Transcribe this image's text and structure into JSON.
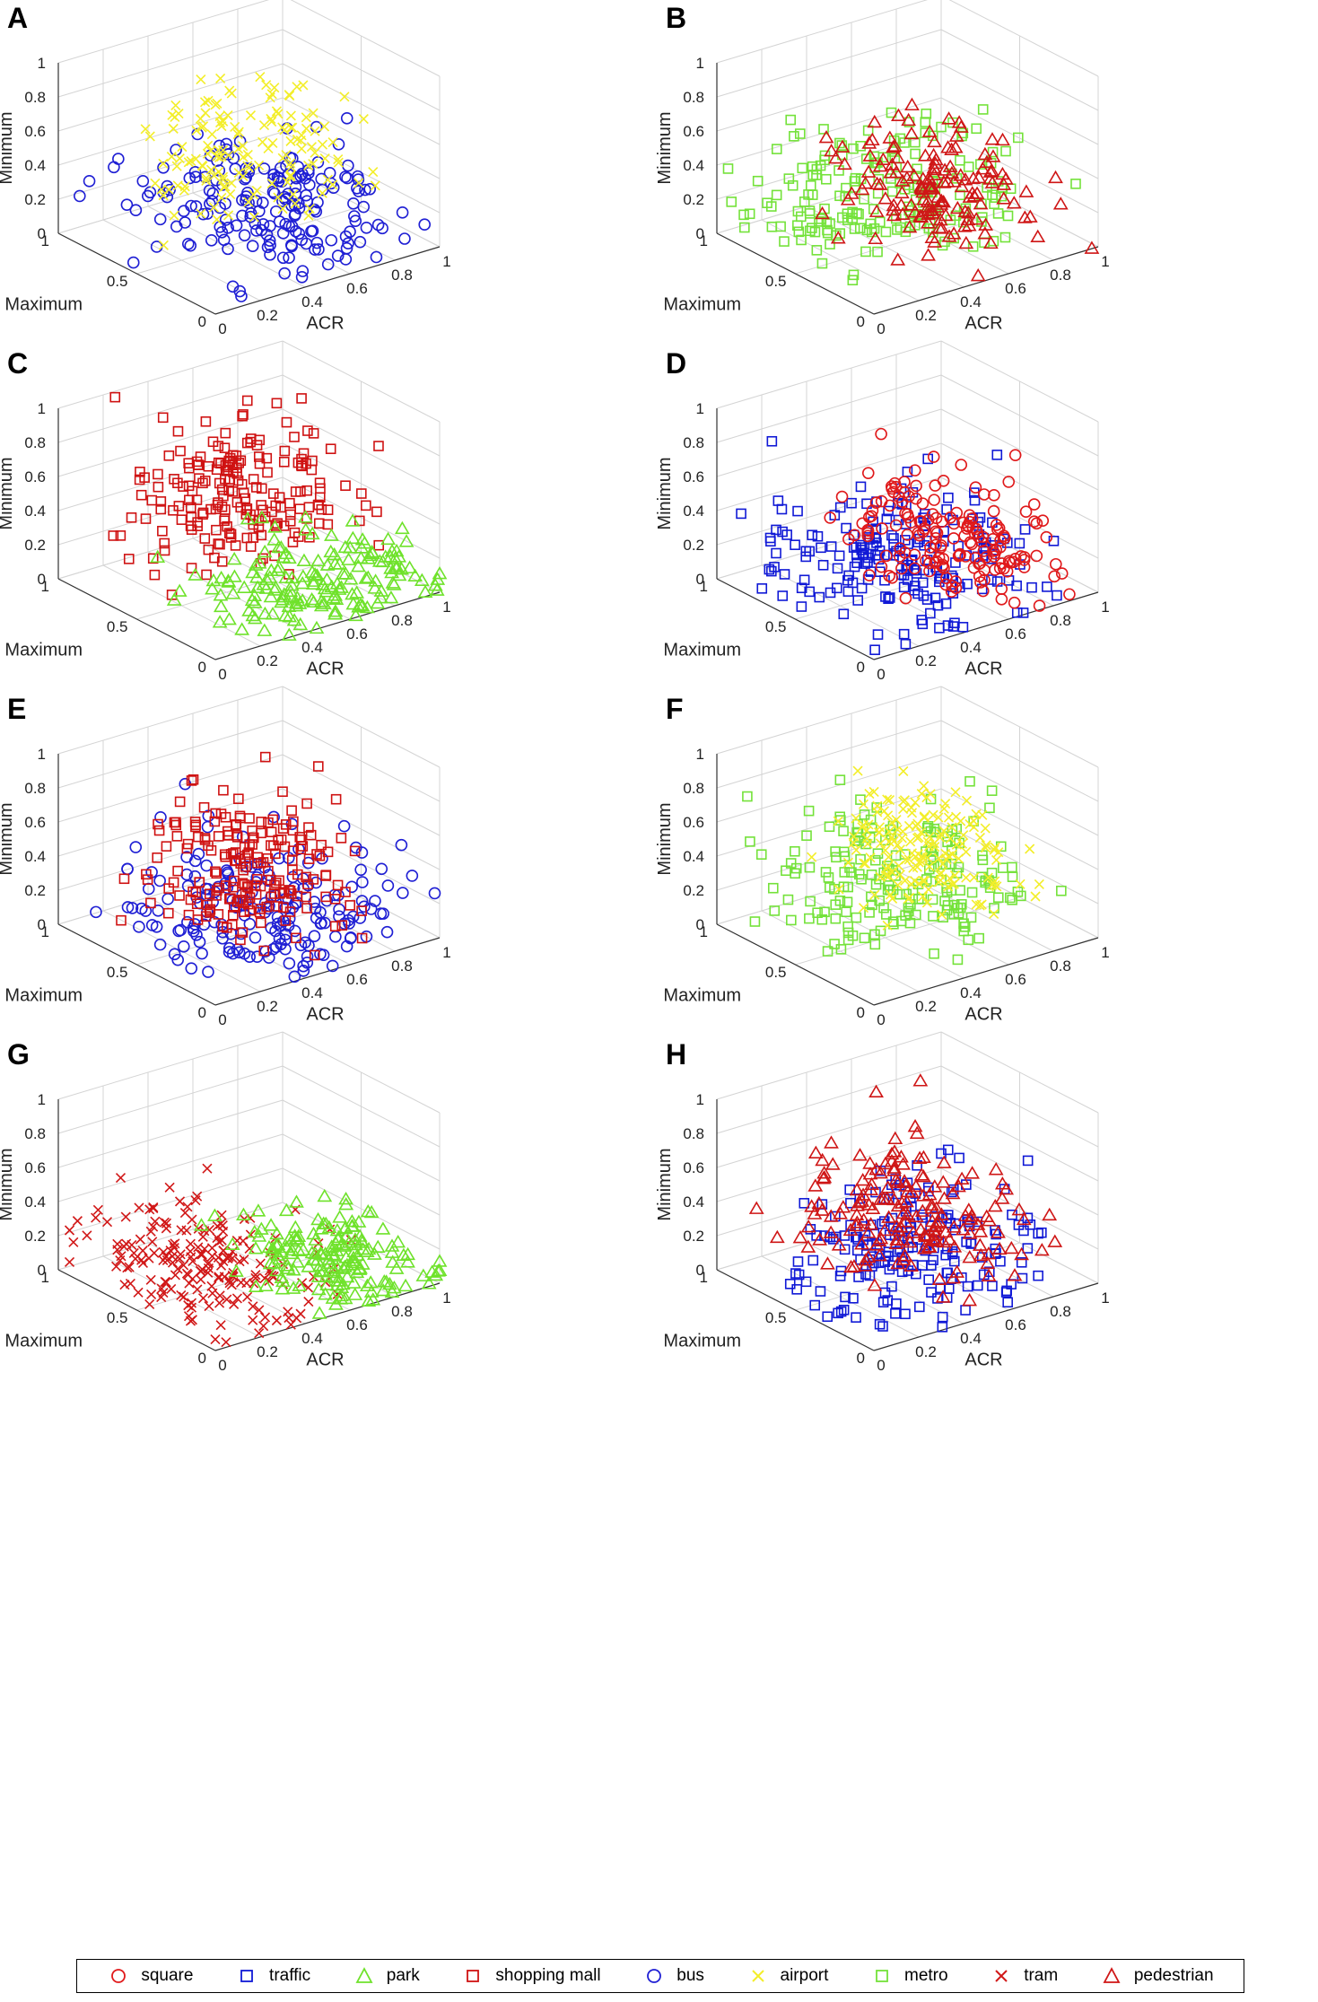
{
  "figure": {
    "panels": [
      "A",
      "B",
      "C",
      "D",
      "E",
      "F",
      "G",
      "H"
    ]
  },
  "axes": {
    "xlabel": "ACR",
    "ylabel": "Maximum",
    "zlabel": "Minimum",
    "x_ticks": [
      "0",
      "0.2",
      "0.4",
      "0.6",
      "0.8",
      "1"
    ],
    "y_ticks": [
      "0",
      "0.5",
      "1"
    ],
    "z_ticks": [
      "0",
      "0.2",
      "0.4",
      "0.6",
      "0.8",
      "1"
    ]
  },
  "categories": [
    {
      "id": "square",
      "label": "square",
      "marker": "circle",
      "color": "#e0191b"
    },
    {
      "id": "traffic",
      "label": "traffic",
      "marker": "square",
      "color": "#1019d6"
    },
    {
      "id": "park",
      "label": "park",
      "marker": "triangle",
      "color": "#6fe22b"
    },
    {
      "id": "shopping_mall",
      "label": "shopping mall",
      "marker": "square",
      "color": "#cf1212"
    },
    {
      "id": "bus",
      "label": "bus",
      "marker": "circle",
      "color": "#1f1fd4"
    },
    {
      "id": "airport",
      "label": "airport",
      "marker": "x",
      "color": "#f3ee2a"
    },
    {
      "id": "metro",
      "label": "metro",
      "marker": "square",
      "color": "#74e23a"
    },
    {
      "id": "tram",
      "label": "tram",
      "marker": "x",
      "color": "#d11818"
    },
    {
      "id": "pedestrian",
      "label": "pedestrian",
      "marker": "triangle",
      "color": "#cf1616"
    }
  ],
  "chart_data": [
    {
      "type": "scatter3d",
      "panel": "A",
      "xlabel": "ACR",
      "ylabel": "Maximum",
      "zlabel": "Minimum",
      "xlim": [
        0,
        1
      ],
      "ylim": [
        0,
        1
      ],
      "zlim": [
        0,
        1
      ],
      "grid": true,
      "series": [
        {
          "name": "bus",
          "marker": "circle",
          "color": "#1f1fd4",
          "n_points": 190,
          "acr_mean": 0.55,
          "acr_sd": 0.22,
          "max_mean": 0.45,
          "max_sd": 0.3,
          "min_mean": 0.15,
          "min_sd": 0.2
        },
        {
          "name": "airport",
          "marker": "x",
          "color": "#f3ee2a",
          "n_points": 150,
          "acr_mean": 0.62,
          "acr_sd": 0.17,
          "max_mean": 0.7,
          "max_sd": 0.2,
          "min_mean": 0.38,
          "min_sd": 0.17
        }
      ]
    },
    {
      "type": "scatter3d",
      "panel": "B",
      "xlabel": "ACR",
      "ylabel": "Maximum",
      "zlabel": "Minimum",
      "xlim": [
        0,
        1
      ],
      "ylim": [
        0,
        1
      ],
      "zlim": [
        0,
        1
      ],
      "grid": true,
      "series": [
        {
          "name": "metro",
          "marker": "square",
          "color": "#74e23a",
          "n_points": 190,
          "acr_mean": 0.45,
          "acr_sd": 0.25,
          "max_mean": 0.6,
          "max_sd": 0.28,
          "min_mean": 0.25,
          "min_sd": 0.2
        },
        {
          "name": "pedestrian",
          "marker": "triangle",
          "color": "#cf1616",
          "n_points": 150,
          "acr_mean": 0.68,
          "acr_sd": 0.16,
          "max_mean": 0.6,
          "max_sd": 0.25,
          "min_mean": 0.18,
          "min_sd": 0.17
        }
      ]
    },
    {
      "type": "scatter3d",
      "panel": "C",
      "xlabel": "ACR",
      "ylabel": "Maximum",
      "zlabel": "Minimum",
      "xlim": [
        0,
        1
      ],
      "ylim": [
        0,
        1
      ],
      "zlim": [
        0,
        1
      ],
      "grid": true,
      "series": [
        {
          "name": "shopping mall",
          "marker": "square",
          "color": "#cf1212",
          "n_points": 200,
          "acr_mean": 0.6,
          "acr_sd": 0.2,
          "max_mean": 0.75,
          "max_sd": 0.2,
          "min_mean": 0.35,
          "min_sd": 0.2
        },
        {
          "name": "park",
          "marker": "triangle",
          "color": "#6fe22b",
          "n_points": 170,
          "acr_mean": 0.62,
          "acr_sd": 0.22,
          "max_mean": 0.25,
          "max_sd": 0.2,
          "min_mean": 0.05,
          "min_sd": 0.12
        }
      ]
    },
    {
      "type": "scatter3d",
      "panel": "D",
      "xlabel": "ACR",
      "ylabel": "Maximum",
      "zlabel": "Minimum",
      "xlim": [
        0,
        1
      ],
      "ylim": [
        0,
        1
      ],
      "zlim": [
        0,
        1
      ],
      "grid": true,
      "series": [
        {
          "name": "traffic",
          "marker": "square",
          "color": "#1019d6",
          "n_points": 200,
          "acr_mean": 0.45,
          "acr_sd": 0.25,
          "max_mean": 0.5,
          "max_sd": 0.3,
          "min_mean": 0.12,
          "min_sd": 0.18
        },
        {
          "name": "square",
          "marker": "circle",
          "color": "#e0191b",
          "n_points": 170,
          "acr_mean": 0.7,
          "acr_sd": 0.15,
          "max_mean": 0.55,
          "max_sd": 0.25,
          "min_mean": 0.14,
          "min_sd": 0.18
        }
      ]
    },
    {
      "type": "scatter3d",
      "panel": "E",
      "xlabel": "ACR",
      "ylabel": "Maximum",
      "zlabel": "Minimum",
      "xlim": [
        0,
        1
      ],
      "ylim": [
        0,
        1
      ],
      "zlim": [
        0,
        1
      ],
      "grid": true,
      "series": [
        {
          "name": "bus",
          "marker": "circle",
          "color": "#1f1fd4",
          "n_points": 190,
          "acr_mean": 0.5,
          "acr_sd": 0.22,
          "max_mean": 0.4,
          "max_sd": 0.28,
          "min_mean": 0.15,
          "min_sd": 0.2
        },
        {
          "name": "shopping mall",
          "marker": "square",
          "color": "#cf1212",
          "n_points": 200,
          "acr_mean": 0.55,
          "acr_sd": 0.18,
          "max_mean": 0.6,
          "max_sd": 0.22,
          "min_mean": 0.3,
          "min_sd": 0.2
        }
      ]
    },
    {
      "type": "scatter3d",
      "panel": "F",
      "xlabel": "ACR",
      "ylabel": "Maximum",
      "zlabel": "Minimum",
      "xlim": [
        0,
        1
      ],
      "ylim": [
        0,
        1
      ],
      "zlim": [
        0,
        1
      ],
      "grid": true,
      "series": [
        {
          "name": "metro",
          "marker": "square",
          "color": "#74e23a",
          "n_points": 190,
          "acr_mean": 0.5,
          "acr_sd": 0.22,
          "max_mean": 0.55,
          "max_sd": 0.28,
          "min_mean": 0.28,
          "min_sd": 0.22
        },
        {
          "name": "airport",
          "marker": "x",
          "color": "#f3ee2a",
          "n_points": 170,
          "acr_mean": 0.7,
          "acr_sd": 0.13,
          "max_mean": 0.7,
          "max_sd": 0.2,
          "min_mean": 0.3,
          "min_sd": 0.16
        }
      ]
    },
    {
      "type": "scatter3d",
      "panel": "G",
      "xlabel": "ACR",
      "ylabel": "Maximum",
      "zlabel": "Minimum",
      "xlim": [
        0,
        1
      ],
      "ylim": [
        0,
        1
      ],
      "zlim": [
        0,
        1
      ],
      "grid": true,
      "series": [
        {
          "name": "tram",
          "marker": "x",
          "color": "#d11818",
          "n_points": 200,
          "acr_mean": 0.3,
          "acr_sd": 0.2,
          "max_mean": 0.55,
          "max_sd": 0.28,
          "min_mean": 0.12,
          "min_sd": 0.16
        },
        {
          "name": "park",
          "marker": "triangle",
          "color": "#6fe22b",
          "n_points": 170,
          "acr_mean": 0.75,
          "acr_sd": 0.15,
          "max_mean": 0.35,
          "max_sd": 0.25,
          "min_mean": 0.05,
          "min_sd": 0.12
        }
      ]
    },
    {
      "type": "scatter3d",
      "panel": "H",
      "xlabel": "ACR",
      "ylabel": "Maximum",
      "zlabel": "Minimum",
      "xlim": [
        0,
        1
      ],
      "ylim": [
        0,
        1
      ],
      "zlim": [
        0,
        1
      ],
      "grid": true,
      "series": [
        {
          "name": "traffic",
          "marker": "square",
          "color": "#1019d6",
          "n_points": 190,
          "acr_mean": 0.45,
          "acr_sd": 0.25,
          "max_mean": 0.45,
          "max_sd": 0.3,
          "min_mean": 0.18,
          "min_sd": 0.2
        },
        {
          "name": "pedestrian",
          "marker": "triangle",
          "color": "#cf1616",
          "n_points": 180,
          "acr_mean": 0.62,
          "acr_sd": 0.18,
          "max_mean": 0.65,
          "max_sd": 0.25,
          "min_mean": 0.22,
          "min_sd": 0.2
        }
      ]
    }
  ]
}
